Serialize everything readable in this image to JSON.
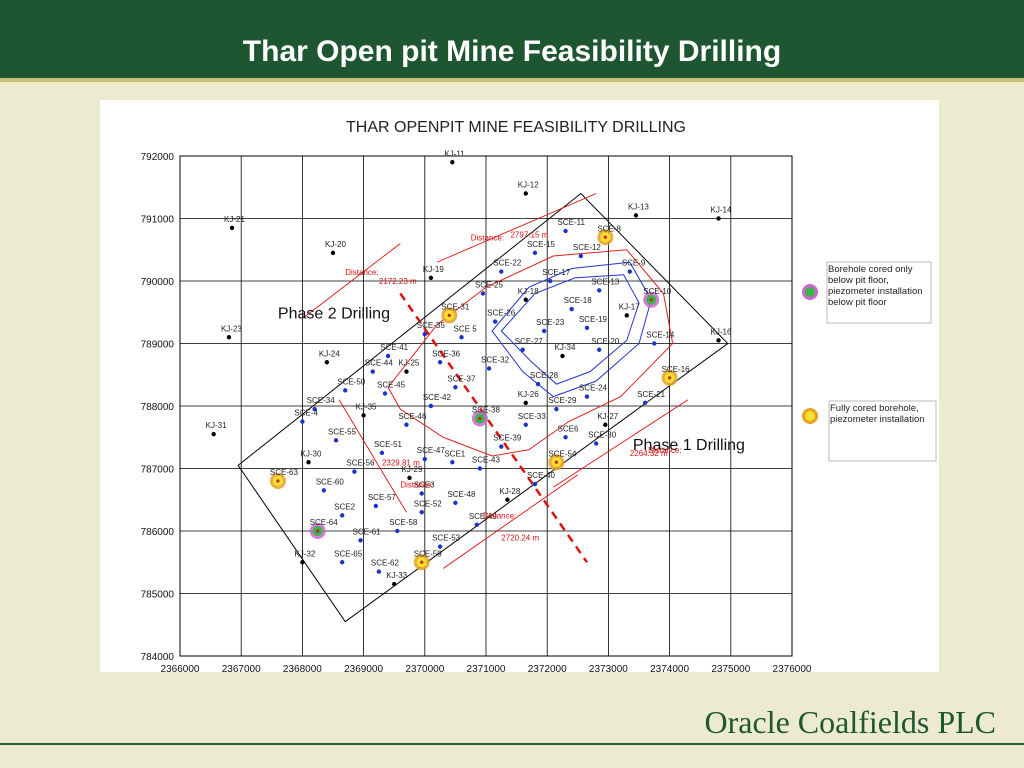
{
  "slide": {
    "title": "Thar Open pit Mine Feasibility Drilling",
    "company": "Oracle Coalfields PLC",
    "header_color": "#1e5631"
  },
  "chart_data": {
    "type": "scatter",
    "title": "THAR OPENPIT MINE FEASIBILITY DRILLING",
    "xlim": [
      2366000,
      2376000
    ],
    "ylim": [
      784000,
      792000
    ],
    "xticks": [
      2366000,
      2367000,
      2368000,
      2369000,
      2370000,
      2371000,
      2372000,
      2373000,
      2374000,
      2375000,
      2376000
    ],
    "yticks": [
      784000,
      785000,
      786000,
      787000,
      788000,
      789000,
      790000,
      791000,
      792000
    ],
    "grid": true,
    "series": [
      {
        "name": "KJ boreholes",
        "color": "#000000",
        "points": [
          {
            "label": "KJ-11",
            "x": 2370450,
            "y": 791900
          },
          {
            "label": "KJ-12",
            "x": 2371650,
            "y": 791400
          },
          {
            "label": "KJ-13",
            "x": 2373450,
            "y": 791050
          },
          {
            "label": "KJ-14",
            "x": 2374800,
            "y": 791000
          },
          {
            "label": "KJ-21",
            "x": 2366850,
            "y": 790850
          },
          {
            "label": "KJ-20",
            "x": 2368500,
            "y": 790450
          },
          {
            "label": "KJ-19",
            "x": 2370100,
            "y": 790050
          },
          {
            "label": "KJ-23",
            "x": 2366800,
            "y": 789100
          },
          {
            "label": "KJ-16",
            "x": 2374800,
            "y": 789050
          },
          {
            "label": "KJ-24",
            "x": 2368400,
            "y": 788700
          },
          {
            "label": "KJ-18",
            "x": 2371650,
            "y": 789700
          },
          {
            "label": "KJ-17",
            "x": 2373300,
            "y": 789450
          },
          {
            "label": "KJ-34",
            "x": 2372250,
            "y": 788800
          },
          {
            "label": "KJ-25",
            "x": 2369700,
            "y": 788550
          },
          {
            "label": "KJ-26",
            "x": 2371650,
            "y": 788050
          },
          {
            "label": "KJ-35",
            "x": 2369000,
            "y": 787850
          },
          {
            "label": "KJ-31",
            "x": 2366550,
            "y": 787550
          },
          {
            "label": "KJ-27",
            "x": 2372950,
            "y": 787700
          },
          {
            "label": "KJ-30",
            "x": 2368100,
            "y": 787100
          },
          {
            "label": "KJ-29",
            "x": 2369750,
            "y": 786850
          },
          {
            "label": "KJ-28",
            "x": 2371350,
            "y": 786500
          },
          {
            "label": "KJ-32",
            "x": 2368000,
            "y": 785500
          },
          {
            "label": "KJ-33",
            "x": 2369500,
            "y": 785150
          }
        ]
      },
      {
        "name": "SCE boreholes",
        "color": "#1a33cc",
        "points": [
          {
            "label": "SCE-11",
            "x": 2372300,
            "y": 790800
          },
          {
            "label": "SCE-15",
            "x": 2371800,
            "y": 790450
          },
          {
            "label": "SCE-12",
            "x": 2372550,
            "y": 790400
          },
          {
            "label": "SCE-22",
            "x": 2371250,
            "y": 790150
          },
          {
            "label": "SCE-17",
            "x": 2372050,
            "y": 790000
          },
          {
            "label": "SCE-9",
            "x": 2373350,
            "y": 790150
          },
          {
            "label": "SCE-13",
            "x": 2372850,
            "y": 789850
          },
          {
            "label": "SCE-25",
            "x": 2370950,
            "y": 789800
          },
          {
            "label": "SCE-18",
            "x": 2372400,
            "y": 789550
          },
          {
            "label": "SCE-26",
            "x": 2371150,
            "y": 789350
          },
          {
            "label": "SCE-19",
            "x": 2372650,
            "y": 789250
          },
          {
            "label": "SCE-23",
            "x": 2371950,
            "y": 789200
          },
          {
            "label": "SCE 5",
            "x": 2370600,
            "y": 789100
          },
          {
            "label": "SCE-14",
            "x": 2373750,
            "y": 789000
          },
          {
            "label": "SCE-35",
            "x": 2370000,
            "y": 789150
          },
          {
            "label": "SCE-27",
            "x": 2371600,
            "y": 788900
          },
          {
            "label": "SCE-20",
            "x": 2372850,
            "y": 788900
          },
          {
            "label": "SCE-41",
            "x": 2369400,
            "y": 788800
          },
          {
            "label": "SCE-36",
            "x": 2370250,
            "y": 788700
          },
          {
            "label": "SCE-32",
            "x": 2371050,
            "y": 788600
          },
          {
            "label": "SCE-44",
            "x": 2369150,
            "y": 788550
          },
          {
            "label": "SCE-28",
            "x": 2371850,
            "y": 788350
          },
          {
            "label": "SCE-50",
            "x": 2368700,
            "y": 788250
          },
          {
            "label": "SCE-37",
            "x": 2370500,
            "y": 788300
          },
          {
            "label": "SCE-24",
            "x": 2372650,
            "y": 788150
          },
          {
            "label": "SCE-45",
            "x": 2369350,
            "y": 788200
          },
          {
            "label": "SCE-21",
            "x": 2373600,
            "y": 788050
          },
          {
            "label": "SCE-29",
            "x": 2372150,
            "y": 787950
          },
          {
            "label": "SCE-42",
            "x": 2370100,
            "y": 788000
          },
          {
            "label": "SCE-34",
            "x": 2368200,
            "y": 787950
          },
          {
            "label": "SCE-4",
            "x": 2368000,
            "y": 787750
          },
          {
            "label": "SCE-46",
            "x": 2369700,
            "y": 787700
          },
          {
            "label": "SCE-33",
            "x": 2371650,
            "y": 787700
          },
          {
            "label": "SCE6",
            "x": 2372300,
            "y": 787500
          },
          {
            "label": "SCE-30",
            "x": 2372800,
            "y": 787400
          },
          {
            "label": "SCE-55",
            "x": 2368550,
            "y": 787450
          },
          {
            "label": "SCE-39",
            "x": 2371250,
            "y": 787350
          },
          {
            "label": "SCE-51",
            "x": 2369300,
            "y": 787250
          },
          {
            "label": "SCE-47",
            "x": 2370000,
            "y": 787150
          },
          {
            "label": "SCE1",
            "x": 2370450,
            "y": 787100
          },
          {
            "label": "SCE-43",
            "x": 2370900,
            "y": 787000
          },
          {
            "label": "SCE-56",
            "x": 2368850,
            "y": 786950
          },
          {
            "label": "SCE-40",
            "x": 2371800,
            "y": 786750
          },
          {
            "label": "SCE-60",
            "x": 2368350,
            "y": 786650
          },
          {
            "label": "SCE3",
            "x": 2369950,
            "y": 786600
          },
          {
            "label": "SCE-48",
            "x": 2370500,
            "y": 786450
          },
          {
            "label": "SCE-57",
            "x": 2369200,
            "y": 786400
          },
          {
            "label": "SCE-52",
            "x": 2369950,
            "y": 786300
          },
          {
            "label": "SCE2",
            "x": 2368650,
            "y": 786250
          },
          {
            "label": "SCE-49",
            "x": 2370850,
            "y": 786100
          },
          {
            "label": "SCE-58",
            "x": 2369550,
            "y": 786000
          },
          {
            "label": "SCE-61",
            "x": 2368950,
            "y": 785850
          },
          {
            "label": "SCE-53",
            "x": 2370250,
            "y": 785750
          },
          {
            "label": "SCE-65",
            "x": 2368650,
            "y": 785500
          },
          {
            "label": "SCE-62",
            "x": 2369250,
            "y": 785350
          }
        ]
      },
      {
        "name": "Borehole cored only below pit floor, piezometer installation below pit floor",
        "color": "#cc66cc",
        "points": [
          {
            "label": "SCE-10",
            "x": 2373700,
            "y": 789700
          },
          {
            "label": "SCE-38",
            "x": 2370900,
            "y": 787800
          },
          {
            "label": "SCE-64",
            "x": 2368250,
            "y": 786000
          }
        ]
      },
      {
        "name": "Fully cored borehole, piezometer installation",
        "color": "#e8a020",
        "points": [
          {
            "label": "SCE-8",
            "x": 2372950,
            "y": 790700
          },
          {
            "label": "SCE-31",
            "x": 2370400,
            "y": 789450
          },
          {
            "label": "SCE-16",
            "x": 2374000,
            "y": 788450
          },
          {
            "label": "SCE-54",
            "x": 2372150,
            "y": 787100
          },
          {
            "label": "SCE-63",
            "x": 2367600,
            "y": 786800
          },
          {
            "label": "SCE-59",
            "x": 2369950,
            "y": 785500
          }
        ]
      }
    ],
    "annotations": [
      {
        "text": "Phase 2 Drilling",
        "x": 2367600,
        "y": 789400
      },
      {
        "text": "Phase 1 Drilling",
        "x": 2373400,
        "y": 787300
      },
      {
        "text": "Distance:",
        "x": 2368700,
        "y": 790100
      },
      {
        "text": "2172.23 m",
        "x": 2369250,
        "y": 789950
      },
      {
        "text": "Distance:",
        "x": 2370750,
        "y": 790650
      },
      {
        "text": "2797.15 m",
        "x": 2371400,
        "y": 790700
      },
      {
        "text": "Distance:",
        "x": 2373650,
        "y": 787250
      },
      {
        "text": "2264.32 m",
        "x": 2373350,
        "y": 787200
      },
      {
        "text": "Distance:",
        "x": 2370950,
        "y": 786200
      },
      {
        "text": "2720.24 m",
        "x": 2371250,
        "y": 785850
      },
      {
        "text": "Distance:",
        "x": 2369600,
        "y": 786700
      },
      {
        "text": "2329.81 m",
        "x": 2369300,
        "y": 787050
      }
    ],
    "legend": [
      {
        "text": "Borehole cored only below pit floor, piezometer installation below pit floor",
        "fill": "#39b54a",
        "ring": "#cc66cc"
      },
      {
        "text": "Fully cored borehole, piezometer installation",
        "fill": "#f8e030",
        "ring": "#e8a020"
      }
    ]
  }
}
